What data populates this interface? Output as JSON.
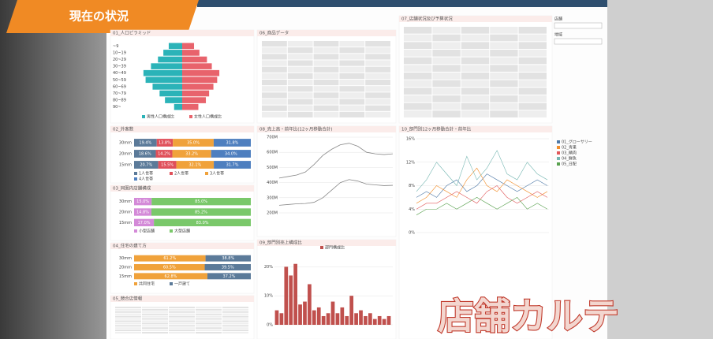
{
  "header": {
    "title": "現在の状況"
  },
  "overlay": {
    "text": "店舗カルテ"
  },
  "filters": [
    {
      "label": "店舗"
    },
    {
      "label": "地域"
    }
  ],
  "panels": [
    {
      "title": "01_人口ピラミッド",
      "type": "pyramid",
      "categories": [
        "~9",
        "10~19",
        "20~29",
        "30~39",
        "40~49",
        "50~59",
        "60~69",
        "70~79",
        "80~89",
        "90~"
      ],
      "xlim": [
        0,
        8
      ],
      "series": [
        {
          "name": "男性人口構成比",
          "color": "#2bb3b8",
          "values": [
            2.5,
            3.5,
            4.5,
            5.8,
            7.2,
            6.8,
            5.5,
            4.2,
            3.2,
            1.5
          ]
        },
        {
          "name": "女性人口構成比",
          "color": "#e8636c",
          "values": [
            2.2,
            3.2,
            4.6,
            5.5,
            6.9,
            6.5,
            5.8,
            5.0,
            4.4,
            3.0
          ]
        }
      ]
    },
    {
      "title": "06_商品データ",
      "type": "table"
    },
    {
      "title": "07_店舗状況及び予算状況",
      "type": "table"
    },
    {
      "title": "02_外客数",
      "type": "stacked",
      "categories": [
        "30mm",
        "20mm",
        "15mm"
      ],
      "xlim": [
        0,
        100
      ],
      "series": [
        {
          "name": "1人世帯",
          "color": "#5b7a99",
          "values": [
            19.4,
            18.6,
            20.7
          ]
        },
        {
          "name": "2人世帯",
          "color": "#e0505a",
          "values": [
            13.8,
            14.2,
            15.5
          ]
        },
        {
          "name": "3人世帯",
          "color": "#f0a23b",
          "values": [
            35.0,
            33.2,
            32.1
          ]
        },
        {
          "name": "4人世帯",
          "color": "#4e7fbf",
          "values": [
            31.8,
            34.0,
            31.7
          ]
        }
      ],
      "value_labels": [
        [
          "19.4%",
          "18.6%",
          "20.7%"
        ],
        [
          "13.8%",
          "14.2%",
          "15.5%"
        ],
        [
          "35.0%",
          "33.2%",
          "32.1%"
        ],
        [
          "31.8%",
          "34.0%",
          "31.7%"
        ]
      ]
    },
    {
      "title": "03_同圏内店舗構成",
      "type": "stacked",
      "categories": [
        "30mm",
        "20mm",
        "15mm"
      ],
      "xlim": [
        0,
        100
      ],
      "series": [
        {
          "name": "小型店舗",
          "color": "#d48ad8",
          "values": [
            15.0,
            14.8,
            17.0
          ]
        },
        {
          "name": "大型店舗",
          "color": "#7ac86a",
          "values": [
            85.0,
            85.2,
            83.0
          ]
        }
      ],
      "value_labels": [
        [
          "15.0%",
          "14.8%",
          "17.0%"
        ],
        [
          "85.0%",
          "85.2%",
          "83.0%"
        ]
      ]
    },
    {
      "title": "04_住宅の建て方",
      "type": "stacked",
      "categories": [
        "30mm",
        "20mm",
        "15mm"
      ],
      "xlim": [
        0,
        100
      ],
      "series": [
        {
          "name": "共同住宅",
          "color": "#f0a23b",
          "values": [
            61.2,
            60.5,
            62.8
          ]
        },
        {
          "name": "一戸建て",
          "color": "#5b7a99",
          "values": [
            38.8,
            39.5,
            37.2
          ]
        }
      ],
      "value_labels": [
        [
          "61.2%",
          "60.5%",
          "62.8%"
        ],
        [
          "38.8%",
          "39.5%",
          "37.2%"
        ]
      ]
    },
    {
      "title": "05_競合店情報",
      "type": "table"
    },
    {
      "title": "08_売上高・前年比(12ヶ月移動合計)",
      "type": "line",
      "ylim": [
        200,
        700
      ],
      "yticks": [
        {
          "value": 200,
          "label": "200M"
        },
        {
          "value": 300,
          "label": "300M"
        },
        {
          "value": 400,
          "label": "400M"
        },
        {
          "value": 500,
          "label": "500M"
        },
        {
          "value": 600,
          "label": "600M"
        },
        {
          "value": 700,
          "label": "700M"
        }
      ],
      "series": [
        {
          "name": "売上高",
          "color": "#888888",
          "values": [
            430,
            440,
            450,
            470,
            520,
            580,
            620,
            650,
            660,
            640,
            600,
            590,
            585,
            590
          ]
        },
        {
          "name": "前年比",
          "color": "#888888",
          "values": [
            250,
            255,
            260,
            262,
            270,
            300,
            350,
            400,
            420,
            410,
            390,
            385,
            380,
            382
          ]
        }
      ]
    },
    {
      "title": "09_部門別売上構成比",
      "type": "bars",
      "ylim": [
        0,
        25
      ],
      "yticks": [
        {
          "value": 0,
          "label": "0%"
        },
        {
          "value": 10,
          "label": "10%"
        },
        {
          "value": 20,
          "label": "20%"
        }
      ],
      "series": [
        {
          "name": "部門構成比",
          "color": "#c0504d",
          "values": [
            5,
            4,
            20,
            17,
            21,
            7,
            8,
            14,
            5,
            6,
            3,
            4,
            8,
            4,
            6,
            3,
            10,
            4,
            5,
            3,
            4,
            2,
            3,
            2,
            3
          ]
        }
      ]
    },
    {
      "title": "10_部門別12ヶ月移動合計・前年比",
      "type": "multiline",
      "ylim": [
        0,
        16
      ],
      "yticks": [
        {
          "value": 0,
          "label": "0%"
        },
        {
          "value": 4,
          "label": "4%"
        },
        {
          "value": 8,
          "label": "8%"
        },
        {
          "value": 12,
          "label": "12%"
        },
        {
          "value": 16,
          "label": "16%"
        }
      ],
      "series": [
        {
          "name": "01_グローサリー",
          "color": "#4e79a7",
          "values": [
            6,
            7,
            6,
            8,
            9,
            7,
            8,
            10,
            9,
            8,
            7,
            8,
            9,
            8
          ]
        },
        {
          "name": "02_青果",
          "color": "#f28e2b",
          "values": [
            5,
            6,
            8,
            7,
            6,
            9,
            11,
            8,
            7,
            9,
            8,
            7,
            6,
            7
          ]
        },
        {
          "name": "03_精肉",
          "color": "#e15759",
          "values": [
            4,
            5,
            5,
            6,
            7,
            6,
            5,
            7,
            8,
            6,
            5,
            6,
            7,
            6
          ]
        },
        {
          "name": "04_鮮魚",
          "color": "#76b7b2",
          "values": [
            7,
            9,
            12,
            10,
            8,
            13,
            9,
            11,
            14,
            10,
            9,
            12,
            10,
            9
          ]
        },
        {
          "name": "05_日配",
          "color": "#59a14f",
          "values": [
            3,
            4,
            4,
            5,
            4,
            5,
            6,
            5,
            4,
            5,
            6,
            4,
            5,
            4
          ]
        }
      ]
    }
  ]
}
